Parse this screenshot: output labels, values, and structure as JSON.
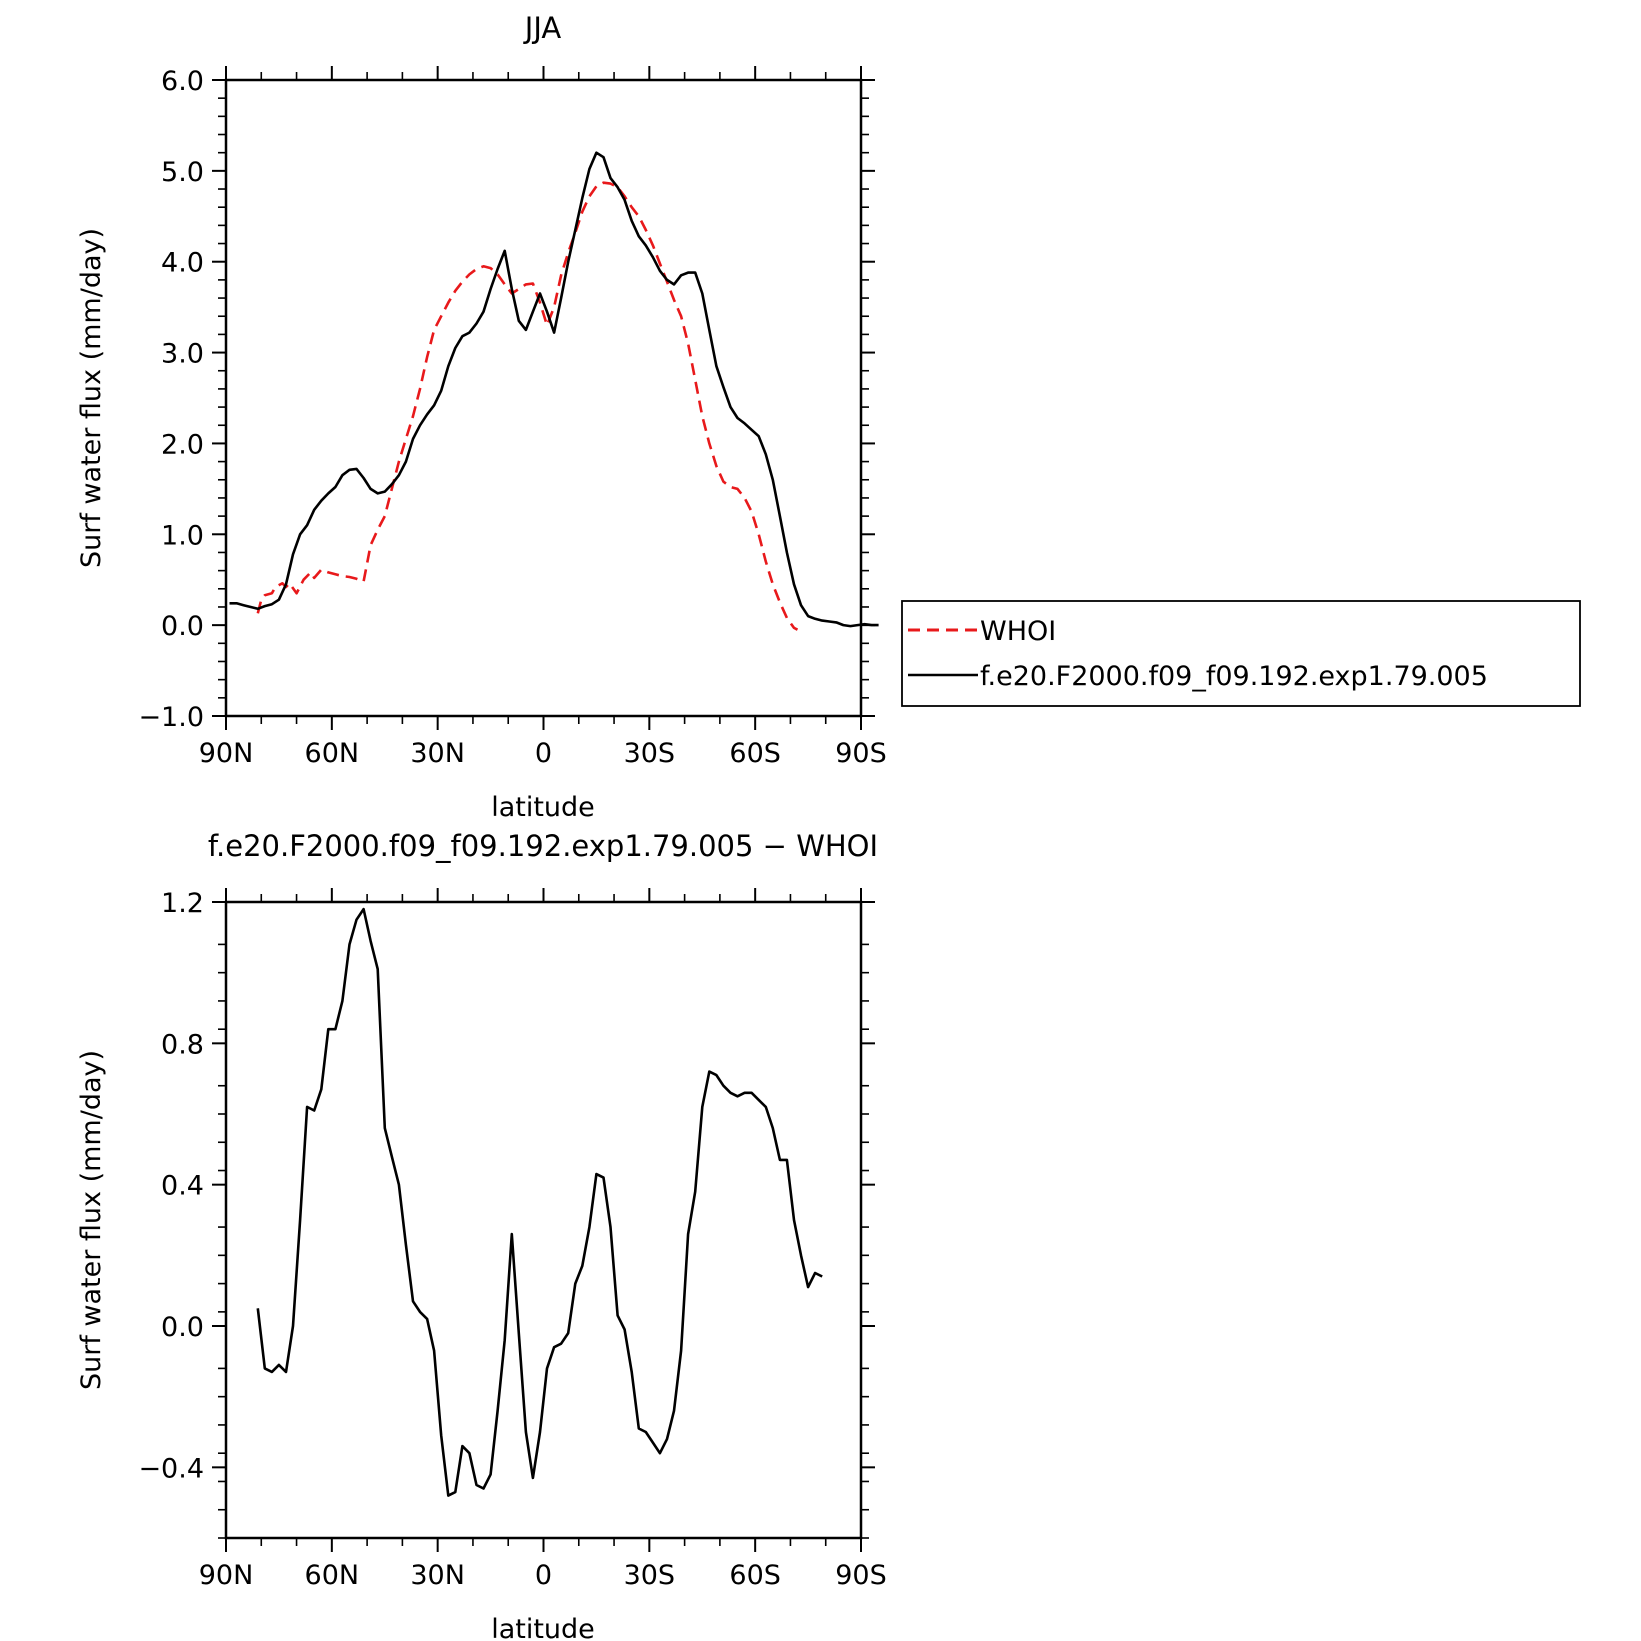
{
  "chart_data": [
    {
      "type": "line",
      "title": "JJA",
      "xlabel": "latitude",
      "ylabel": "Surf water flux (mm/day)",
      "xlim": [
        90,
        -90
      ],
      "ylim": [
        -1.0,
        6.0
      ],
      "x_ticks": [
        90,
        60,
        30,
        0,
        -30,
        -60,
        -90
      ],
      "x_tick_labels": [
        "90N",
        "60N",
        "30N",
        "0",
        "30S",
        "60S",
        "90S"
      ],
      "y_ticks": [
        -1.0,
        0.0,
        1.0,
        2.0,
        3.0,
        4.0,
        5.0,
        6.0
      ],
      "y_tick_labels": [
        "−1.0",
        "0.0",
        "1.0",
        "2.0",
        "3.0",
        "4.0",
        "5.0",
        "6.0"
      ],
      "legend_position": "right-outside",
      "series": [
        {
          "name": "WHOI",
          "color": "#e8191b",
          "dash": "dashed",
          "points": [
            [
              81,
              0.13
            ],
            [
              80,
              0.28
            ],
            [
              79,
              0.33
            ],
            [
              77,
              0.35
            ],
            [
              76,
              0.42
            ],
            [
              74,
              0.46
            ],
            [
              73,
              0.42
            ],
            [
              72,
              0.46
            ],
            [
              70,
              0.35
            ],
            [
              68,
              0.5
            ],
            [
              66,
              0.58
            ],
            [
              65,
              0.52
            ],
            [
              63,
              0.61
            ],
            [
              61,
              0.58
            ],
            [
              59,
              0.56
            ],
            [
              57,
              0.54
            ],
            [
              55,
              0.53
            ],
            [
              53,
              0.51
            ],
            [
              51,
              0.48
            ],
            [
              49,
              0.88
            ],
            [
              47,
              1.05
            ],
            [
              45,
              1.2
            ],
            [
              43,
              1.5
            ],
            [
              41,
              1.8
            ],
            [
              39,
              2.05
            ],
            [
              37,
              2.3
            ],
            [
              35,
              2.6
            ],
            [
              33,
              2.95
            ],
            [
              31,
              3.25
            ],
            [
              29,
              3.4
            ],
            [
              27,
              3.55
            ],
            [
              25,
              3.68
            ],
            [
              23,
              3.78
            ],
            [
              21,
              3.86
            ],
            [
              19,
              3.92
            ],
            [
              17,
              3.95
            ],
            [
              15,
              3.93
            ],
            [
              13,
              3.86
            ],
            [
              11,
              3.75
            ],
            [
              9,
              3.65
            ],
            [
              7,
              3.7
            ],
            [
              5,
              3.75
            ],
            [
              3,
              3.76
            ],
            [
              1,
              3.55
            ],
            [
              -1,
              3.3
            ],
            [
              -3,
              3.5
            ],
            [
              -5,
              3.85
            ],
            [
              -7,
              4.1
            ],
            [
              -9,
              4.32
            ],
            [
              -11,
              4.55
            ],
            [
              -13,
              4.72
            ],
            [
              -15,
              4.83
            ],
            [
              -17,
              4.87
            ],
            [
              -19,
              4.86
            ],
            [
              -21,
              4.82
            ],
            [
              -23,
              4.72
            ],
            [
              -25,
              4.6
            ],
            [
              -27,
              4.5
            ],
            [
              -29,
              4.35
            ],
            [
              -31,
              4.18
            ],
            [
              -33,
              3.98
            ],
            [
              -35,
              3.78
            ],
            [
              -37,
              3.58
            ],
            [
              -39,
              3.4
            ],
            [
              -41,
              3.1
            ],
            [
              -43,
              2.7
            ],
            [
              -45,
              2.3
            ],
            [
              -47,
              2.0
            ],
            [
              -49,
              1.75
            ],
            [
              -51,
              1.58
            ],
            [
              -53,
              1.52
            ],
            [
              -55,
              1.5
            ],
            [
              -57,
              1.4
            ],
            [
              -59,
              1.25
            ],
            [
              -61,
              1.0
            ],
            [
              -63,
              0.7
            ],
            [
              -65,
              0.45
            ],
            [
              -67,
              0.25
            ],
            [
              -69,
              0.08
            ],
            [
              -71,
              -0.03
            ],
            [
              -72,
              -0.05
            ]
          ]
        },
        {
          "name": "f.e20.F2000.f09_f09.192.exp1.79.005",
          "color": "#000000",
          "dash": "solid",
          "points": [
            [
              89,
              0.24
            ],
            [
              87,
              0.24
            ],
            [
              85,
              0.22
            ],
            [
              83,
              0.2
            ],
            [
              81,
              0.18
            ],
            [
              79,
              0.21
            ],
            [
              77,
              0.23
            ],
            [
              75,
              0.28
            ],
            [
              73,
              0.45
            ],
            [
              71,
              0.78
            ],
            [
              69,
              1.0
            ],
            [
              67,
              1.1
            ],
            [
              65,
              1.27
            ],
            [
              63,
              1.37
            ],
            [
              61,
              1.45
            ],
            [
              59,
              1.52
            ],
            [
              57,
              1.65
            ],
            [
              55,
              1.71
            ],
            [
              53,
              1.72
            ],
            [
              51,
              1.62
            ],
            [
              49,
              1.5
            ],
            [
              47,
              1.45
            ],
            [
              45,
              1.47
            ],
            [
              43,
              1.55
            ],
            [
              41,
              1.65
            ],
            [
              39,
              1.8
            ],
            [
              37,
              2.05
            ],
            [
              35,
              2.2
            ],
            [
              33,
              2.32
            ],
            [
              31,
              2.42
            ],
            [
              29,
              2.58
            ],
            [
              27,
              2.85
            ],
            [
              25,
              3.05
            ],
            [
              23,
              3.18
            ],
            [
              21,
              3.22
            ],
            [
              19,
              3.32
            ],
            [
              17,
              3.45
            ],
            [
              15,
              3.7
            ],
            [
              13,
              3.92
            ],
            [
              11,
              4.12
            ],
            [
              9,
              3.7
            ],
            [
              7,
              3.35
            ],
            [
              5,
              3.25
            ],
            [
              3,
              3.45
            ],
            [
              1,
              3.65
            ],
            [
              -1,
              3.45
            ],
            [
              -3,
              3.22
            ],
            [
              -5,
              3.6
            ],
            [
              -7,
              4.0
            ],
            [
              -9,
              4.35
            ],
            [
              -11,
              4.7
            ],
            [
              -13,
              5.02
            ],
            [
              -15,
              5.2
            ],
            [
              -17,
              5.15
            ],
            [
              -19,
              4.92
            ],
            [
              -21,
              4.82
            ],
            [
              -23,
              4.68
            ],
            [
              -25,
              4.45
            ],
            [
              -27,
              4.28
            ],
            [
              -29,
              4.18
            ],
            [
              -31,
              4.05
            ],
            [
              -33,
              3.9
            ],
            [
              -35,
              3.8
            ],
            [
              -37,
              3.75
            ],
            [
              -39,
              3.85
            ],
            [
              -41,
              3.88
            ],
            [
              -43,
              3.88
            ],
            [
              -45,
              3.65
            ],
            [
              -47,
              3.25
            ],
            [
              -49,
              2.85
            ],
            [
              -51,
              2.62
            ],
            [
              -53,
              2.4
            ],
            [
              -55,
              2.28
            ],
            [
              -57,
              2.22
            ],
            [
              -59,
              2.15
            ],
            [
              -61,
              2.08
            ],
            [
              -63,
              1.88
            ],
            [
              -65,
              1.6
            ],
            [
              -67,
              1.2
            ],
            [
              -69,
              0.8
            ],
            [
              -71,
              0.45
            ],
            [
              -73,
              0.22
            ],
            [
              -75,
              0.1
            ],
            [
              -77,
              0.07
            ],
            [
              -79,
              0.05
            ],
            [
              -81,
              0.04
            ],
            [
              -83,
              0.03
            ],
            [
              -85,
              0.0
            ],
            [
              -87,
              -0.01
            ],
            [
              -89,
              0.0
            ],
            [
              -91,
              0.01
            ],
            [
              -93,
              0.0
            ],
            [
              -95,
              0.0
            ]
          ]
        }
      ]
    },
    {
      "type": "line",
      "title": "f.e20.F2000.f09_f09.192.exp1.79.005 − WHOI",
      "xlabel": "latitude",
      "ylabel": "Surf water flux (mm/day)",
      "xlim": [
        90,
        -90
      ],
      "ylim": [
        -0.6,
        1.2
      ],
      "x_ticks": [
        90,
        60,
        30,
        0,
        -30,
        -60,
        -90
      ],
      "x_tick_labels": [
        "90N",
        "60N",
        "30N",
        "0",
        "30S",
        "60S",
        "90S"
      ],
      "y_ticks": [
        -0.4,
        0.0,
        0.4,
        0.8,
        1.2
      ],
      "y_tick_labels": [
        "−0.4",
        "0.0",
        "0.4",
        "0.8",
        "1.2"
      ],
      "series": [
        {
          "color": "#000000",
          "dash": "solid",
          "points": [
            [
              81,
              0.05
            ],
            [
              79,
              -0.12
            ],
            [
              77,
              -0.13
            ],
            [
              75,
              -0.11
            ],
            [
              73,
              -0.13
            ],
            [
              71,
              0.0
            ],
            [
              69,
              0.3
            ],
            [
              67,
              0.62
            ],
            [
              65,
              0.61
            ],
            [
              63,
              0.67
            ],
            [
              61,
              0.84
            ],
            [
              59,
              0.84
            ],
            [
              57,
              0.92
            ],
            [
              55,
              1.08
            ],
            [
              53,
              1.15
            ],
            [
              51,
              1.18
            ],
            [
              49,
              1.09
            ],
            [
              47,
              1.01
            ],
            [
              45,
              0.56
            ],
            [
              43,
              0.48
            ],
            [
              41,
              0.4
            ],
            [
              39,
              0.23
            ],
            [
              37,
              0.07
            ],
            [
              35,
              0.04
            ],
            [
              33,
              0.02
            ],
            [
              31,
              -0.07
            ],
            [
              29,
              -0.31
            ],
            [
              27,
              -0.48
            ],
            [
              25,
              -0.47
            ],
            [
              23,
              -0.34
            ],
            [
              21,
              -0.36
            ],
            [
              19,
              -0.45
            ],
            [
              17,
              -0.46
            ],
            [
              15,
              -0.42
            ],
            [
              13,
              -0.24
            ],
            [
              11,
              -0.04
            ],
            [
              9,
              0.26
            ],
            [
              7,
              -0.02
            ],
            [
              5,
              -0.3
            ],
            [
              3,
              -0.43
            ],
            [
              1,
              -0.3
            ],
            [
              -1,
              -0.12
            ],
            [
              -3,
              -0.06
            ],
            [
              -5,
              -0.05
            ],
            [
              -7,
              -0.02
            ],
            [
              -9,
              0.12
            ],
            [
              -11,
              0.17
            ],
            [
              -13,
              0.28
            ],
            [
              -15,
              0.43
            ],
            [
              -17,
              0.42
            ],
            [
              -19,
              0.28
            ],
            [
              -21,
              0.03
            ],
            [
              -23,
              -0.01
            ],
            [
              -25,
              -0.13
            ],
            [
              -27,
              -0.29
            ],
            [
              -29,
              -0.3
            ],
            [
              -31,
              -0.33
            ],
            [
              -33,
              -0.36
            ],
            [
              -35,
              -0.32
            ],
            [
              -37,
              -0.24
            ],
            [
              -39,
              -0.07
            ],
            [
              -41,
              0.26
            ],
            [
              -43,
              0.38
            ],
            [
              -45,
              0.62
            ],
            [
              -47,
              0.72
            ],
            [
              -49,
              0.71
            ],
            [
              -51,
              0.68
            ],
            [
              -53,
              0.66
            ],
            [
              -55,
              0.65
            ],
            [
              -57,
              0.66
            ],
            [
              -59,
              0.66
            ],
            [
              -61,
              0.64
            ],
            [
              -63,
              0.62
            ],
            [
              -65,
              0.56
            ],
            [
              -67,
              0.47
            ],
            [
              -69,
              0.47
            ],
            [
              -71,
              0.3
            ],
            [
              -73,
              0.2
            ],
            [
              -75,
              0.11
            ],
            [
              -77,
              0.15
            ],
            [
              -79,
              0.14
            ]
          ]
        }
      ]
    }
  ]
}
